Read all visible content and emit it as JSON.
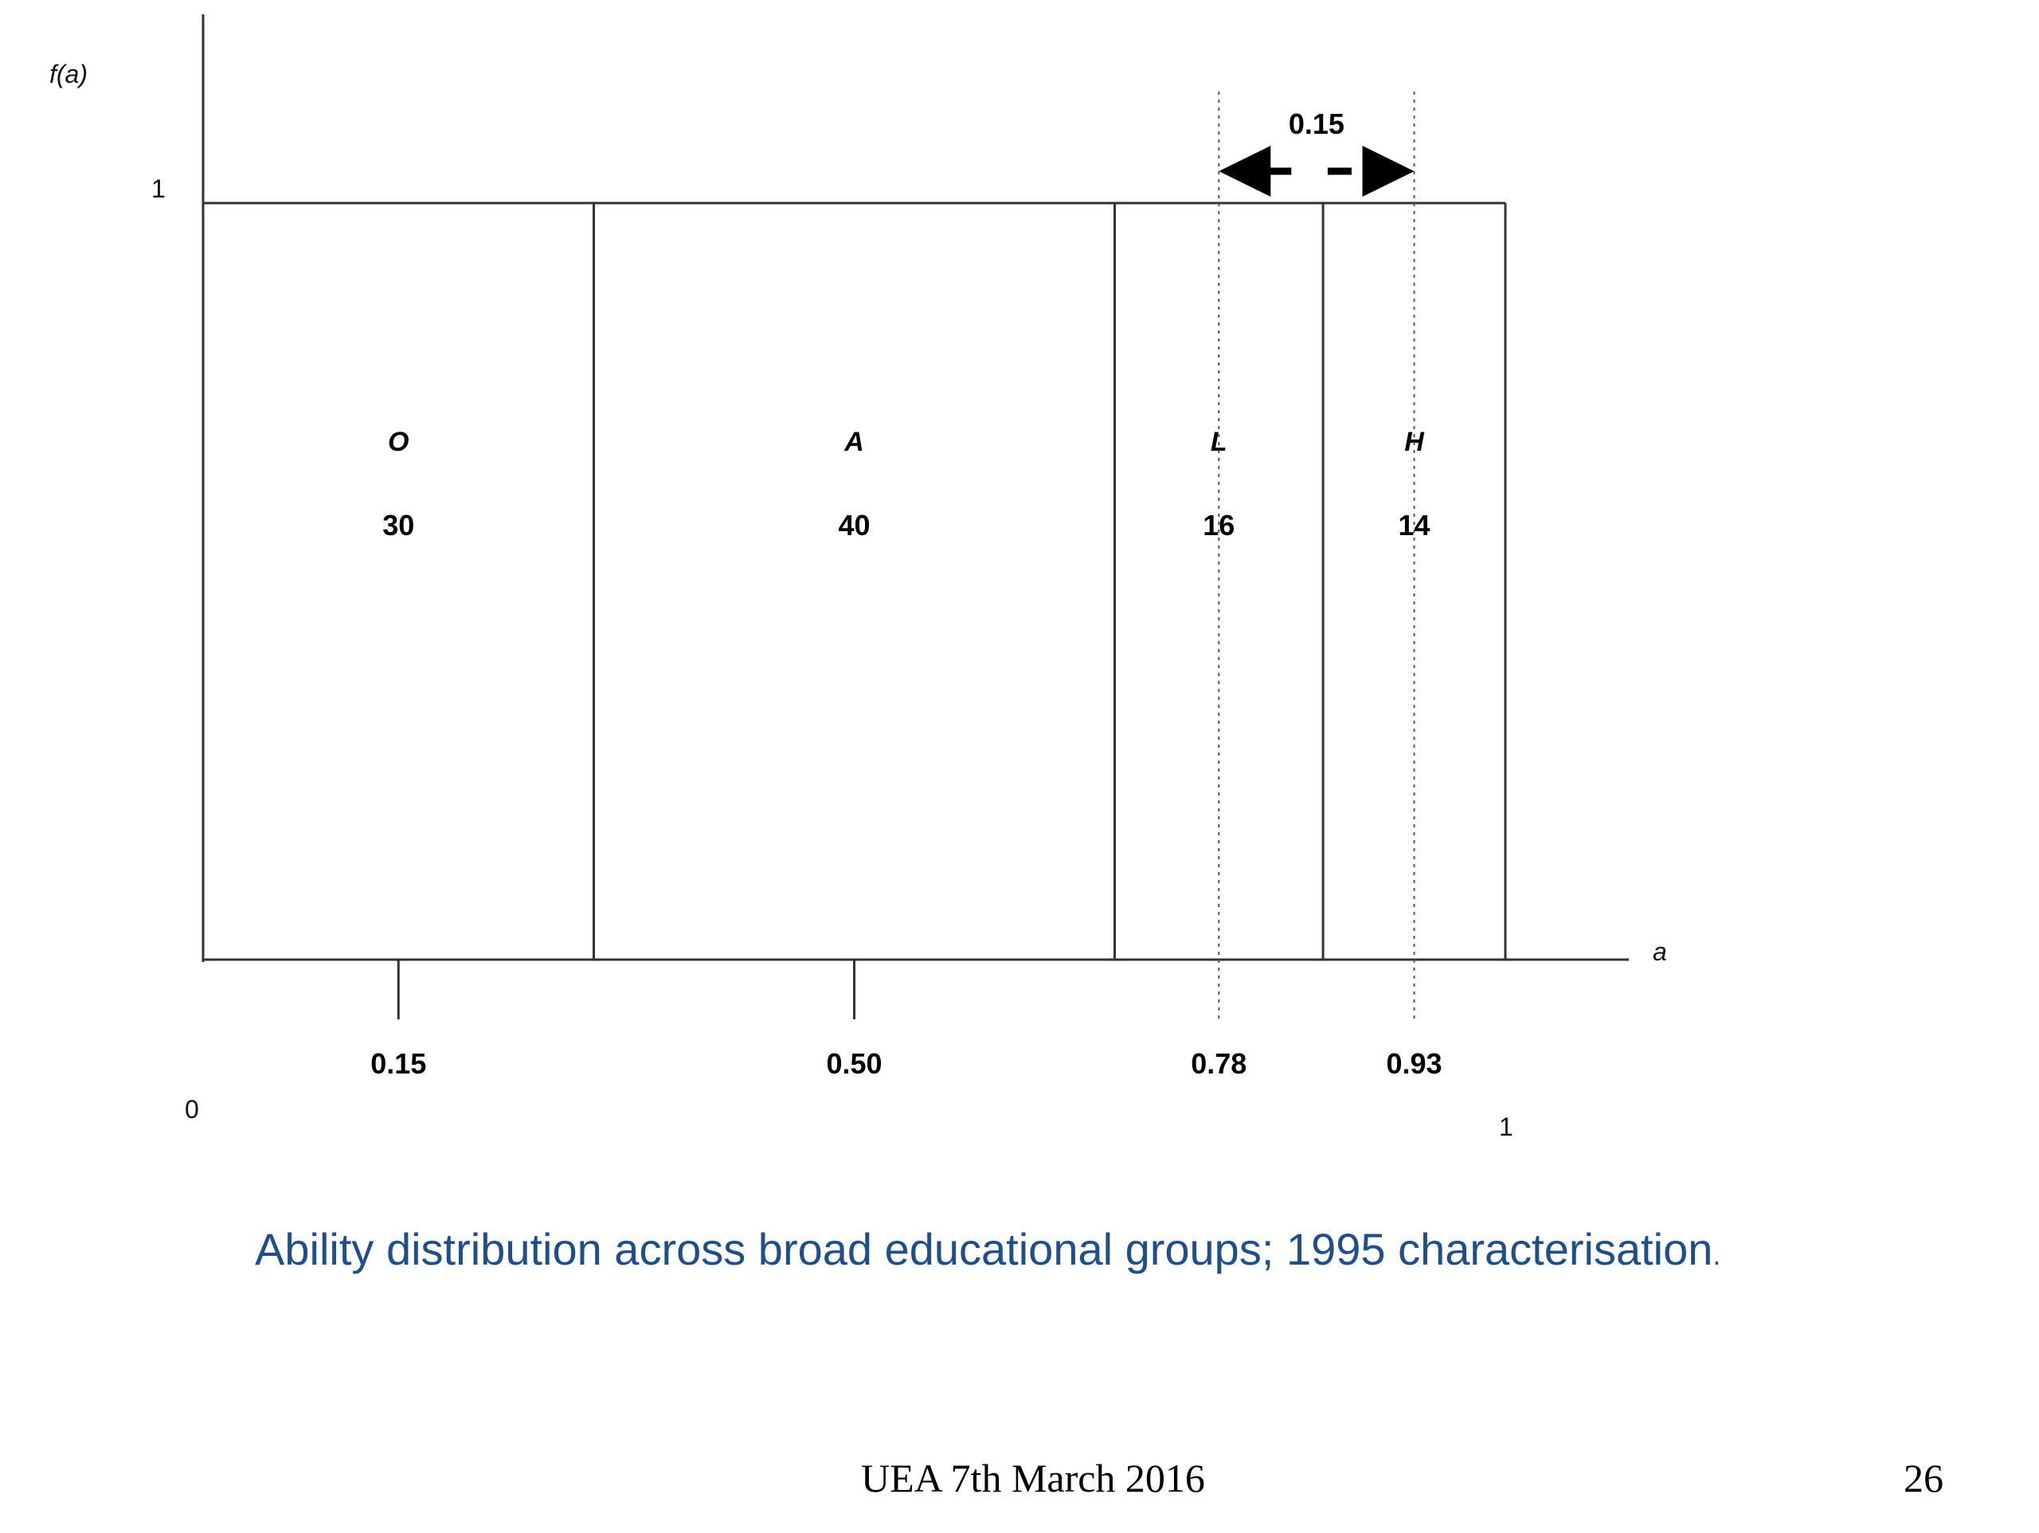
{
  "chart_data": {
    "type": "bar",
    "title": "",
    "ylabel": "f(a)",
    "xlabel": "a",
    "xlim": [
      0,
      1
    ],
    "ylim": [
      0,
      1
    ],
    "origin_label": "0",
    "x_end_label": "1",
    "y_top_label": "1",
    "boundaries": [
      0,
      0.3,
      0.7,
      0.86,
      1
    ],
    "segments": [
      {
        "letter": "O",
        "value": "30",
        "start": 0.0,
        "end": 0.3,
        "marker": 0.15,
        "marker_label": "0.15",
        "marker_style": "solid"
      },
      {
        "letter": "A",
        "value": "40",
        "start": 0.3,
        "end": 0.7,
        "marker": 0.5,
        "marker_label": "0.50",
        "marker_style": "solid"
      },
      {
        "letter": "L",
        "value": "16",
        "start": 0.7,
        "end": 0.86,
        "marker": 0.78,
        "marker_label": "0.78",
        "marker_style": "dotted"
      },
      {
        "letter": "H",
        "value": "14",
        "start": 0.86,
        "end": 1.0,
        "marker": 0.93,
        "marker_label": "0.93",
        "marker_style": "dotted"
      }
    ],
    "span_annotation": {
      "from": 0.78,
      "to": 0.93,
      "label": "0.15"
    }
  },
  "caption": {
    "text": "Ability distribution across broad educational groups; 1995 characterisation",
    "trailing": ".",
    "color": "#1f4e8c"
  },
  "footer": {
    "center": "UEA 7th March 2016",
    "page_number": "26"
  }
}
